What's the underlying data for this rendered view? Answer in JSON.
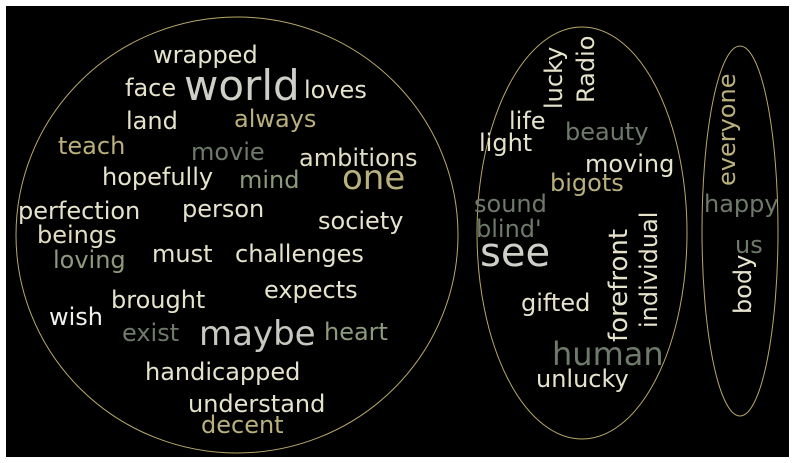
{
  "colors": {
    "background": "#000000",
    "outline": "#b8a86a",
    "cream": "#e6e3cc",
    "white": "#f0f0ee",
    "khaki": "#b9b07b",
    "sage": "#8e9a7c",
    "greygreen": "#6e7a6a",
    "grey": "#c8c8c0"
  },
  "words": {
    "wrapped": "wrapped",
    "face": "face",
    "world": "world",
    "loves": "loves",
    "land": "land",
    "always": "always",
    "teach": "teach",
    "movie": "movie",
    "ambitions": "ambitions",
    "hopefully": "hopefully",
    "mind": "mind",
    "one": "one",
    "perfection": "perfection",
    "person": "person",
    "society": "society",
    "beings": "beings",
    "loving": "loving",
    "must": "must",
    "challenges": "challenges",
    "expects": "expects",
    "brought": "brought",
    "wish": "wish",
    "exist": "exist",
    "maybe": "maybe",
    "heart": "heart",
    "handicapped": "handicapped",
    "understand": "understand",
    "decent": "decent",
    "lucky": "lucky",
    "radio": "Radio",
    "life": "life",
    "beauty": "beauty",
    "light": "light",
    "moving": "moving",
    "bigots": "bigots",
    "individual": "individual",
    "sound": "sound",
    "blind": "blind'",
    "forefront": "forefront",
    "see": "see",
    "gifted": "gifted",
    "human": "human",
    "unlucky": "unlucky",
    "everyone": "everyone",
    "happy": "happy",
    "us": "us",
    "body": "body"
  }
}
